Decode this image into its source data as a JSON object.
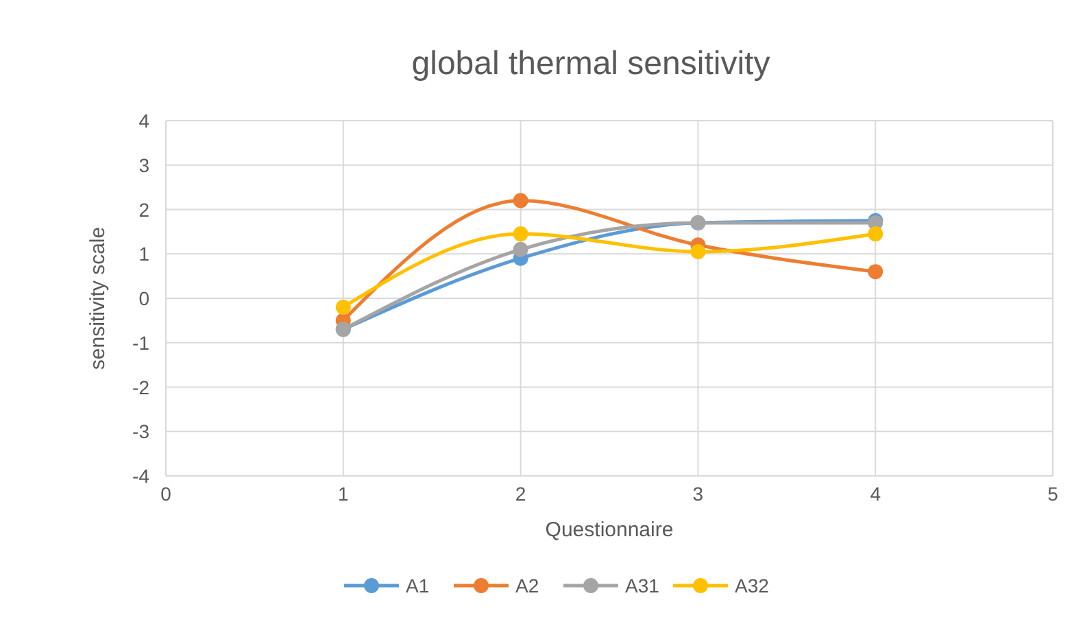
{
  "chart_data": {
    "type": "line",
    "title": "global thermal sensitivity",
    "xlabel": "Questionnaire",
    "ylabel": "sensitivity scale",
    "x": [
      1,
      2,
      3,
      4
    ],
    "xlim": [
      0,
      5
    ],
    "xticks": [
      0,
      1,
      2,
      3,
      4,
      5
    ],
    "ylim": [
      -4,
      4
    ],
    "yticks": [
      -4,
      -3,
      -2,
      -1,
      0,
      1,
      2,
      3,
      4
    ],
    "grid": true,
    "legend": "bottom",
    "marker": "circle",
    "line_style": "solid",
    "series": [
      {
        "name": "A1",
        "color": "#5b9bd5",
        "values": [
          -0.7,
          0.9,
          1.7,
          1.75
        ]
      },
      {
        "name": "A2",
        "color": "#ed7d31",
        "values": [
          -0.5,
          2.2,
          1.2,
          0.6
        ]
      },
      {
        "name": "A31",
        "color": "#a5a5a5",
        "values": [
          -0.7,
          1.1,
          1.7,
          1.7
        ]
      },
      {
        "name": "A32",
        "color": "#ffc000",
        "values": [
          -0.2,
          1.45,
          1.05,
          1.45
        ]
      }
    ]
  }
}
